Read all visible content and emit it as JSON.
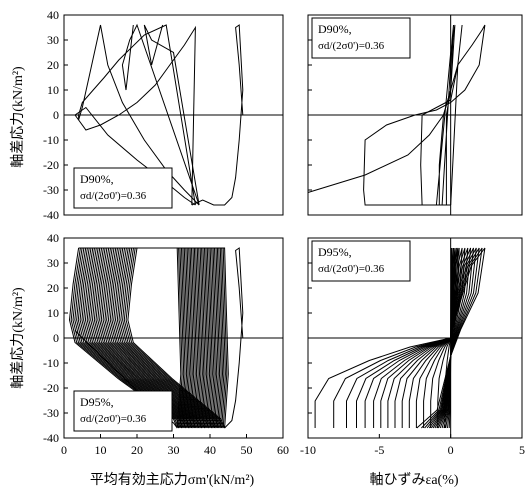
{
  "chart_data": [
    {
      "id": "top-left",
      "type": "line",
      "xlabel": "",
      "ylabel": "軸差応力(kN/m²)",
      "xlim": [
        0,
        60
      ],
      "ylim": [
        -40,
        40
      ],
      "x_ticks": [],
      "y_ticks": [
        "40",
        "30",
        "20",
        "10",
        "0",
        "-10",
        "-20",
        "-30",
        "-40"
      ],
      "annotation": [
        "D90%,",
        "σd/(2σ0')=0.36"
      ],
      "annotation_pos": "bottom-left",
      "series": [
        {
          "x": [
            49,
            48,
            47,
            48,
            49,
            48,
            47,
            46,
            44,
            41,
            38,
            35
          ],
          "y": [
            0,
            20,
            35,
            36,
            10,
            -10,
            -25,
            -33,
            -36,
            -36,
            -34,
            -36
          ]
        },
        {
          "x": [
            35,
            36,
            33,
            29,
            25,
            20,
            15,
            10,
            6,
            3
          ],
          "y": [
            -36,
            35,
            28,
            20,
            12,
            5,
            0,
            -4,
            -6,
            0
          ]
        },
        {
          "x": [
            3,
            6,
            12,
            20,
            28,
            33,
            36
          ],
          "y": [
            0,
            3,
            -8,
            -18,
            -27,
            -33,
            -36
          ]
        },
        {
          "x": [
            36,
            28,
            22,
            15,
            11,
            8,
            5,
            4,
            4,
            5,
            7,
            10
          ],
          "y": [
            -36,
            36,
            32,
            22,
            15,
            10,
            5,
            0,
            -2,
            3,
            16,
            36
          ]
        },
        {
          "x": [
            10,
            12,
            16,
            22,
            28,
            33,
            37
          ],
          "y": [
            36,
            20,
            5,
            -10,
            -22,
            -30,
            -36
          ]
        },
        {
          "x": [
            37,
            20,
            18,
            16,
            17,
            19
          ],
          "y": [
            -36,
            36,
            30,
            20,
            10,
            36
          ]
        },
        {
          "x": [
            37,
            30,
            24,
            22,
            24,
            27
          ],
          "y": [
            -36,
            25,
            30,
            36,
            20,
            36
          ]
        }
      ]
    },
    {
      "id": "top-right",
      "type": "line",
      "xlabel": "",
      "ylabel": "",
      "xlim": [
        -10,
        5
      ],
      "ylim": [
        -40,
        40
      ],
      "x_ticks": [],
      "y_ticks": [],
      "annotation": [
        "D90%,",
        "σd/(2σ0')=0.36"
      ],
      "annotation_pos": "top-left",
      "series": [
        {
          "x": [
            -10,
            -6,
            -3,
            -1.5,
            -0.5,
            0,
            0.5,
            1.5,
            2.2,
            2.4,
            2.0,
            1.0,
            0,
            -1,
            -2.5,
            -4.5,
            -6,
            -6.1,
            -6,
            -3,
            -1,
            0
          ],
          "y": [
            -31,
            -24,
            -16,
            -8,
            0,
            10,
            20,
            28,
            34,
            36,
            20,
            10,
            5,
            2,
            0,
            -4,
            -10,
            -30,
            -36,
            -36,
            -36,
            -36
          ]
        },
        {
          "x": [
            0,
            0.5,
            0.8,
            0.5,
            0,
            -1,
            -2,
            -2.1,
            -2,
            -1
          ],
          "y": [
            -36,
            20,
            36,
            20,
            6,
            3,
            0,
            -20,
            -36,
            -36
          ]
        },
        {
          "x": [
            -1,
            0,
            0.3,
            0,
            -0.5,
            -0.8,
            -0.8,
            -0.6
          ],
          "y": [
            -36,
            25,
            36,
            10,
            0,
            -20,
            -36,
            -36
          ]
        },
        {
          "x": [
            -0.6,
            0.1,
            0.2,
            0,
            -0.3,
            -0.3,
            0
          ],
          "y": [
            -36,
            30,
            36,
            10,
            0,
            -36,
            -36
          ]
        }
      ]
    },
    {
      "id": "bottom-left",
      "type": "line",
      "xlabel": "平均有効主応力σm'(kN/m²)",
      "ylabel": "軸差応力(kN/m²)",
      "xlim": [
        0,
        60
      ],
      "ylim": [
        -40,
        40
      ],
      "x_ticks": [
        "0",
        "10",
        "20",
        "30",
        "40",
        "50",
        "60"
      ],
      "y_ticks": [
        "40",
        "30",
        "20",
        "10",
        "0",
        "-10",
        "-20",
        "-30",
        "-40"
      ],
      "annotation": [
        "D95%,",
        "σd/(2σ0')=0.36"
      ],
      "annotation_pos": "bottom-left",
      "dense_loops": {
        "count": 34,
        "p_right_start": 44,
        "p_right_end": 31,
        "p_left_start": 20,
        "p_left_end": 4,
        "q_amp": 36
      },
      "series": [
        {
          "x": [
            49,
            48,
            47,
            48,
            49,
            48,
            47,
            46,
            44
          ],
          "y": [
            0,
            20,
            35,
            36,
            10,
            -10,
            -25,
            -33,
            -36
          ]
        },
        {
          "x": [
            3,
            5,
            10,
            15,
            20,
            25,
            30,
            31
          ],
          "y": [
            3,
            0,
            -7,
            -14,
            -21,
            -28,
            -34,
            -36
          ]
        }
      ]
    },
    {
      "id": "bottom-right",
      "type": "line",
      "xlabel": "軸ひずみεa(%)",
      "ylabel": "",
      "xlim": [
        -10,
        5
      ],
      "ylim": [
        -40,
        40
      ],
      "x_ticks": [
        "-10",
        "-5",
        "0",
        "5"
      ],
      "y_ticks": [],
      "annotation": [
        "D95%,",
        "σd/(2σ0')=0.36"
      ],
      "annotation_pos": "top-left",
      "loop_tips_compression": [
        -9.5,
        -8.2,
        -7.3,
        -6.6,
        -6.0,
        -5.4,
        -4.9,
        -4.4,
        -3.9,
        -3.4,
        -2.9,
        -2.4,
        -1.9,
        -1.4,
        -0.9,
        -0.4
      ],
      "loop_tips_extension": [
        2.4,
        2.2,
        2.0,
        1.8,
        1.6,
        1.4,
        1.2,
        1.0,
        0.8,
        0.6,
        0.5,
        0.4,
        0.3,
        0.2,
        0.1,
        0.05
      ],
      "q_amp": 36
    }
  ]
}
